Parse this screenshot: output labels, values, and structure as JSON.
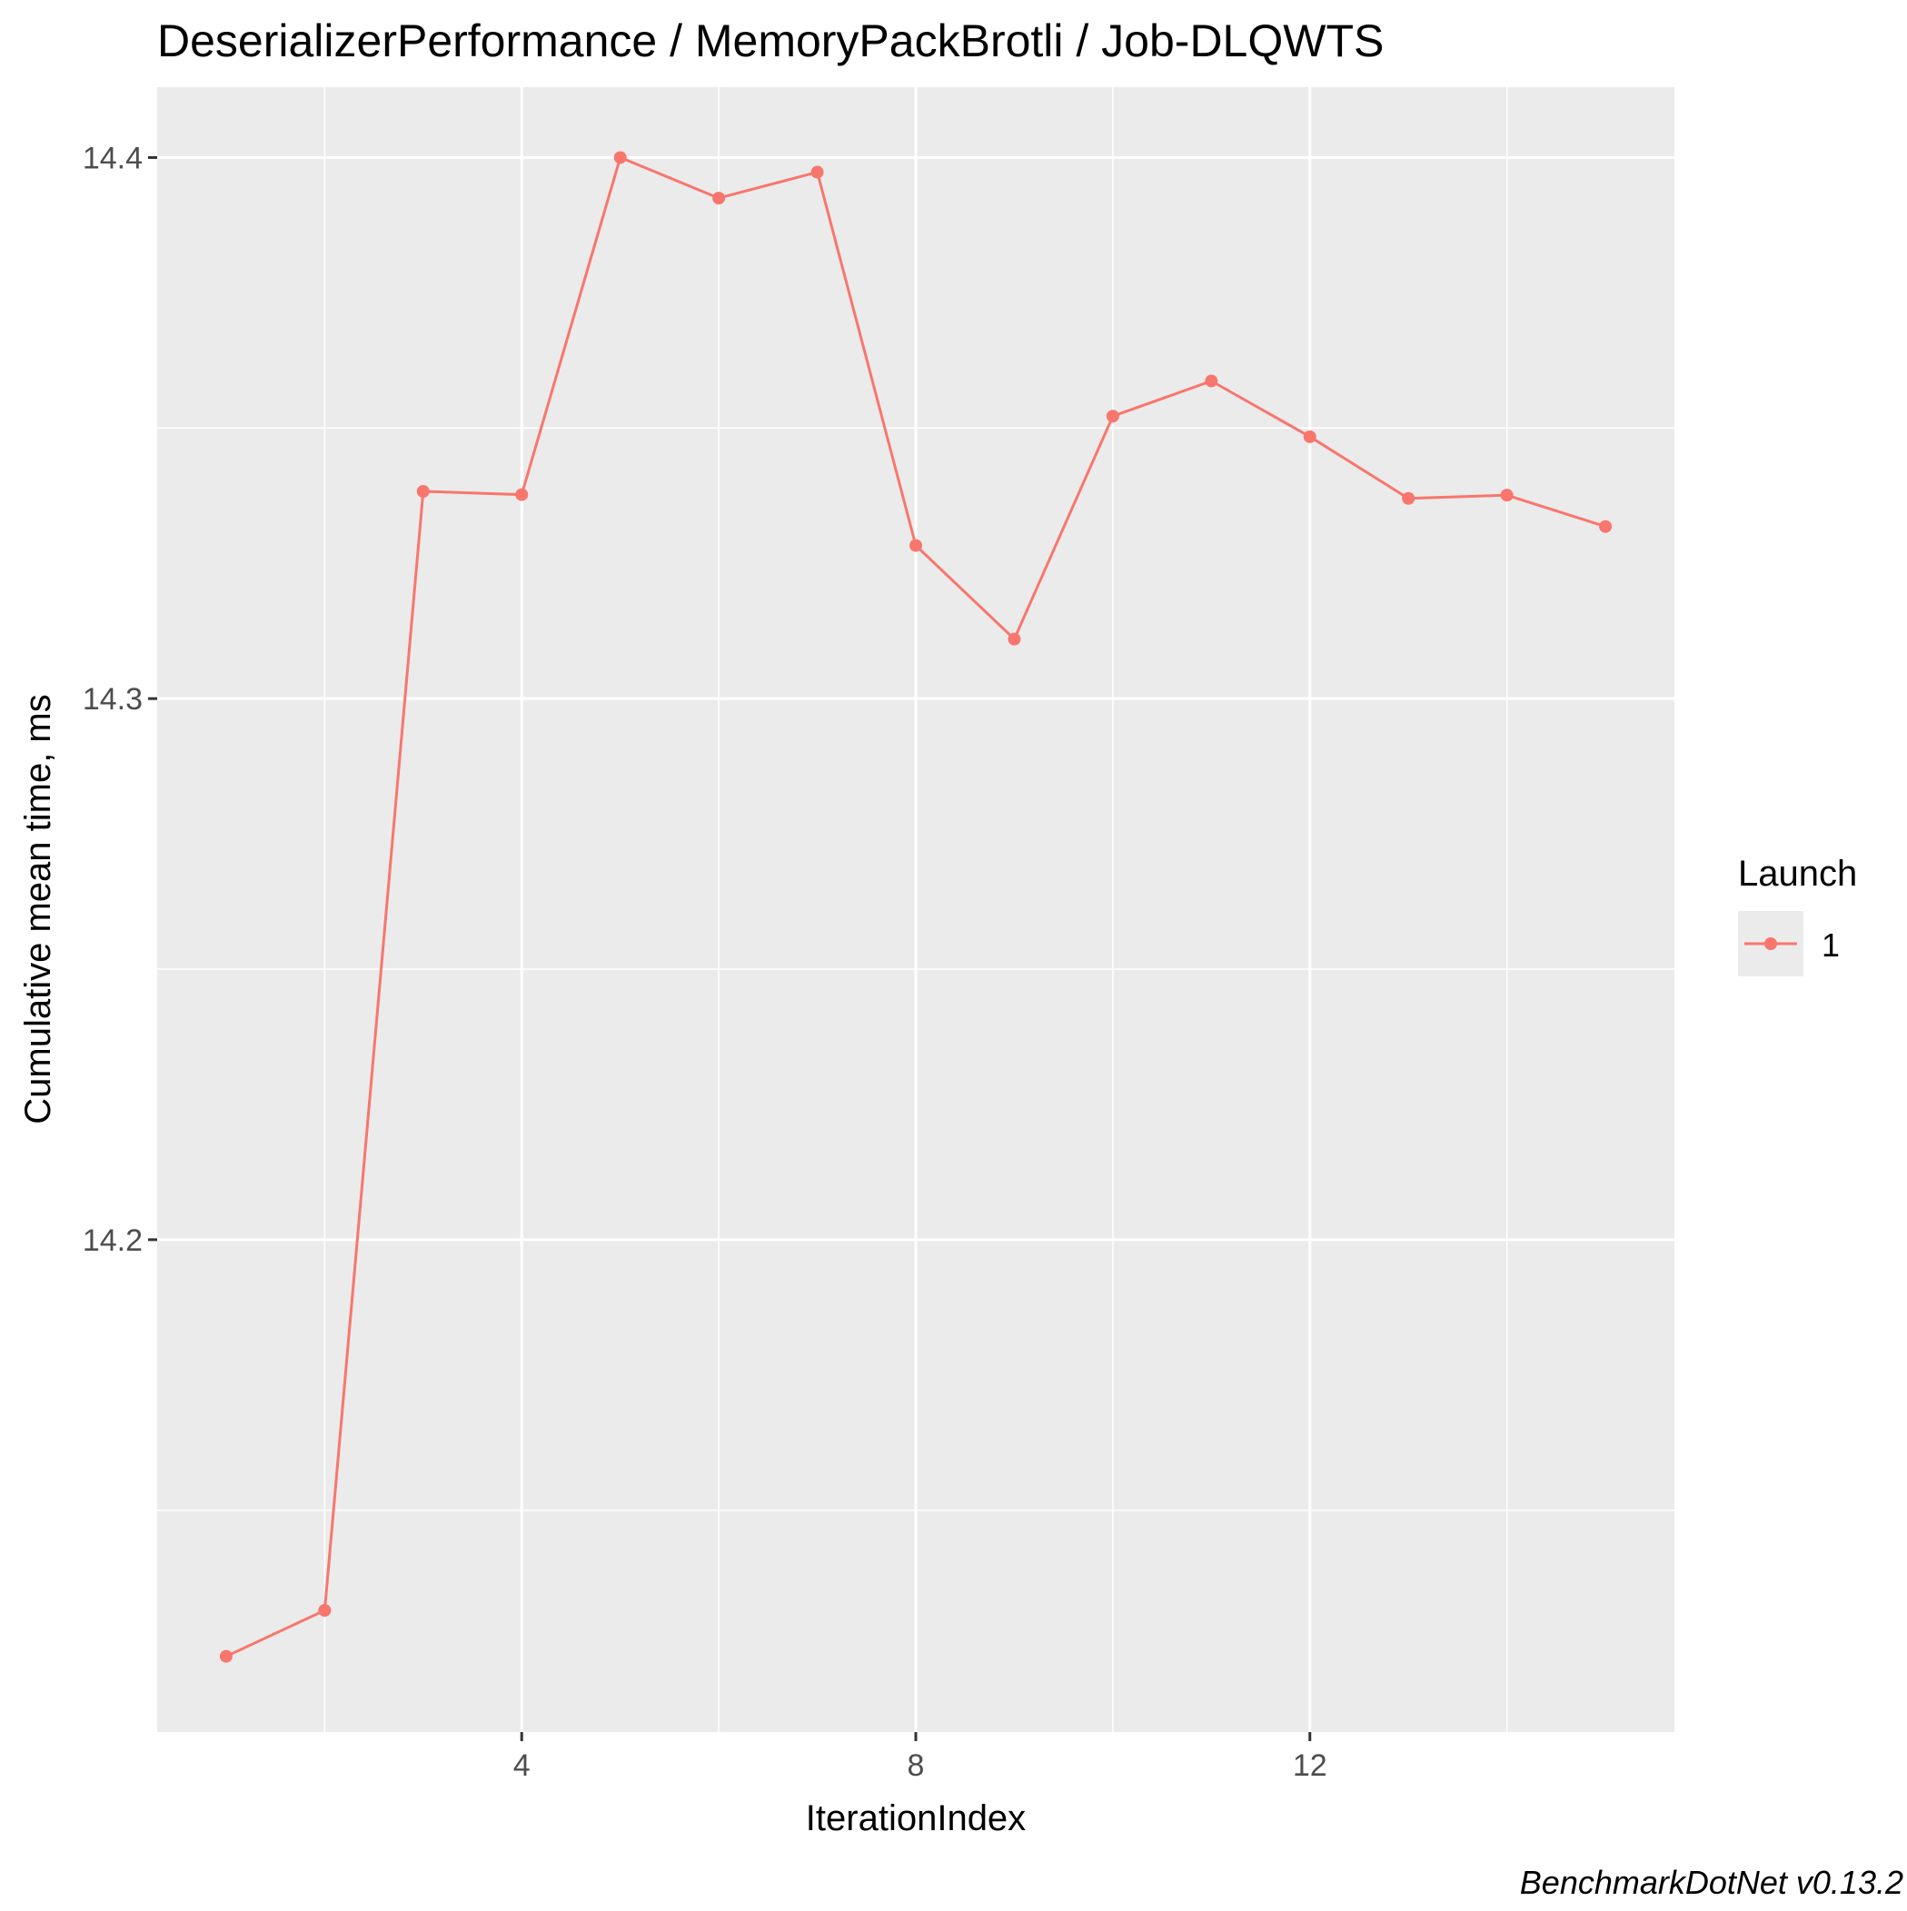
{
  "chart_data": {
    "type": "line",
    "title": "DeserializerPerformance / MemoryPackBrotli / Job-DLQWTS",
    "xlabel": "IterationIndex",
    "ylabel": "Cumulative mean time, ms",
    "x_ticks": [
      4,
      8,
      12
    ],
    "y_ticks": [
      14.2,
      14.3,
      14.4
    ],
    "xlim": [
      0.3,
      15.7
    ],
    "ylim": [
      14.109,
      14.413
    ],
    "grid": true,
    "legend": {
      "title": "Launch",
      "position": "right",
      "entries": [
        "1"
      ]
    },
    "series": [
      {
        "name": "1",
        "color": "#F8766D",
        "x": [
          1,
          2,
          3,
          4,
          5,
          6,
          7,
          8,
          9,
          10,
          11,
          12,
          13,
          14,
          15
        ],
        "y": [
          14.123,
          14.1315,
          14.3383,
          14.3377,
          14.4,
          14.3925,
          14.3973,
          14.3283,
          14.311,
          14.3522,
          14.3587,
          14.3484,
          14.337,
          14.3376,
          14.3318
        ]
      }
    ]
  },
  "footer": {
    "credit": "BenchmarkDotNet v0.13.2"
  },
  "colors": {
    "panel_background": "#EBEBEB",
    "grid": "#FFFFFF",
    "text": "#000000",
    "tick_text": "#4D4D4D",
    "tick_mark": "#333333"
  }
}
